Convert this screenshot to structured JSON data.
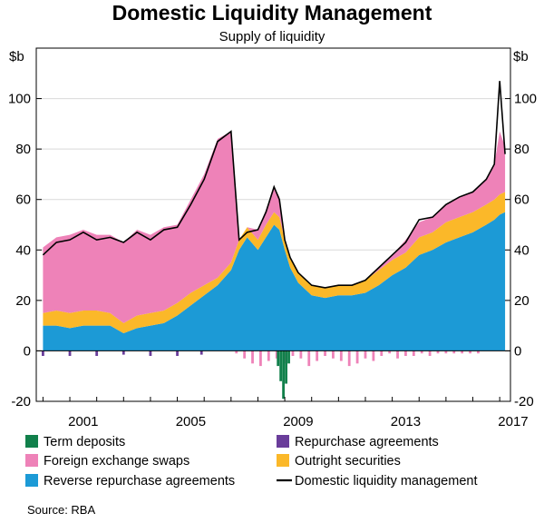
{
  "chart_data": {
    "type": "area",
    "title": "Domestic Liquidity Management",
    "subtitle": "Supply of liquidity",
    "ylabel_left": "$b",
    "ylabel_right": "$b",
    "ylim": [
      -20,
      120
    ],
    "yticks": [
      -20,
      0,
      20,
      40,
      60,
      80,
      100
    ],
    "xlim": [
      1999.75,
      2017.4
    ],
    "xticks": [
      2001,
      2005,
      2009,
      2013,
      2017
    ],
    "source": "Source:   RBA",
    "stack_order": [
      "Reverse repurchase agreements",
      "Outright securities",
      "Foreign exchange swaps"
    ],
    "negative_order": [
      "Repurchase agreements",
      "Foreign exchange swaps",
      "Term deposits"
    ],
    "legend": [
      {
        "name": "Term deposits",
        "color": "#11804b",
        "kind": "box"
      },
      {
        "name": "Repurchase agreements",
        "color": "#6a3d9a",
        "kind": "box"
      },
      {
        "name": "Foreign exchange swaps",
        "color": "#ee82b8",
        "kind": "box"
      },
      {
        "name": "Outright securities",
        "color": "#fbb829",
        "kind": "box"
      },
      {
        "name": "Reverse repurchase agreements",
        "color": "#1c9ad6",
        "kind": "box"
      },
      {
        "name": "Domestic liquidity management",
        "color": "#000000",
        "kind": "line"
      }
    ],
    "series": [
      {
        "name": "Reverse repurchase agreements",
        "color": "#1c9ad6",
        "x": [
          2000.0,
          2000.5,
          2001.0,
          2001.5,
          2002.0,
          2002.5,
          2003.0,
          2003.5,
          2004.0,
          2004.5,
          2005.0,
          2005.5,
          2006.0,
          2006.5,
          2007.0,
          2007.3,
          2007.6,
          2008.0,
          2008.3,
          2008.6,
          2008.8,
          2009.0,
          2009.2,
          2009.5,
          2010.0,
          2010.5,
          2011.0,
          2011.5,
          2012.0,
          2012.5,
          2013.0,
          2013.5,
          2014.0,
          2014.5,
          2015.0,
          2015.5,
          2016.0,
          2016.5,
          2016.8,
          2017.0,
          2017.2
        ],
        "values": [
          10,
          10,
          9,
          10,
          10,
          10,
          7,
          9,
          10,
          11,
          14,
          18,
          22,
          26,
          32,
          40,
          45,
          40,
          45,
          50,
          48,
          40,
          33,
          27,
          22,
          21,
          22,
          22,
          23,
          26,
          30,
          33,
          38,
          40,
          43,
          45,
          47,
          50,
          52,
          54,
          55
        ]
      },
      {
        "name": "Outright securities",
        "color": "#fbb829",
        "x": [
          2000.0,
          2000.5,
          2001.0,
          2001.5,
          2002.0,
          2002.5,
          2003.0,
          2003.5,
          2004.0,
          2004.5,
          2005.0,
          2005.5,
          2006.0,
          2006.5,
          2007.0,
          2007.3,
          2007.6,
          2008.0,
          2008.3,
          2008.6,
          2008.8,
          2009.0,
          2009.2,
          2009.5,
          2010.0,
          2010.5,
          2011.0,
          2011.5,
          2012.0,
          2012.5,
          2013.0,
          2013.5,
          2014.0,
          2014.5,
          2015.0,
          2015.5,
          2016.0,
          2016.5,
          2016.8,
          2017.0,
          2017.2
        ],
        "values": [
          5,
          6,
          6,
          6,
          6,
          5,
          4,
          5,
          5,
          5,
          5,
          5,
          4,
          3,
          3,
          4,
          4,
          4,
          5,
          5,
          5,
          4,
          4,
          4,
          4,
          4,
          4,
          4,
          5,
          6,
          6,
          6,
          7,
          7,
          8,
          8,
          8,
          8,
          8,
          8,
          8
        ]
      },
      {
        "name": "Foreign exchange swaps",
        "color": "#ee82b8",
        "x": [
          2000.0,
          2000.5,
          2001.0,
          2001.5,
          2002.0,
          2002.5,
          2003.0,
          2003.5,
          2004.0,
          2004.5,
          2005.0,
          2005.5,
          2006.0,
          2006.5,
          2007.0,
          2007.3,
          2007.6,
          2008.0,
          2008.3,
          2008.6,
          2008.8,
          2009.0,
          2009.2,
          2009.5,
          2010.0,
          2010.5,
          2011.0,
          2011.5,
          2012.0,
          2012.5,
          2013.0,
          2013.5,
          2014.0,
          2014.5,
          2015.0,
          2015.5,
          2016.0,
          2016.5,
          2016.8,
          2017.0,
          2017.2
        ],
        "values": [
          26,
          29,
          31,
          32,
          30,
          31,
          32,
          34,
          31,
          33,
          31,
          37,
          44,
          55,
          52,
          0,
          0,
          4,
          6,
          10,
          8,
          0,
          0,
          0,
          0,
          0,
          0,
          0,
          0,
          1,
          2,
          5,
          6,
          6,
          7,
          8,
          8,
          10,
          14,
          25,
          18
        ]
      },
      {
        "name": "Domestic liquidity management",
        "color": "#000000",
        "x": [
          2000.0,
          2000.5,
          2001.0,
          2001.5,
          2002.0,
          2002.5,
          2003.0,
          2003.5,
          2004.0,
          2004.5,
          2005.0,
          2005.5,
          2006.0,
          2006.5,
          2007.0,
          2007.3,
          2007.6,
          2008.0,
          2008.3,
          2008.6,
          2008.8,
          2009.0,
          2009.2,
          2009.5,
          2010.0,
          2010.5,
          2011.0,
          2011.5,
          2012.0,
          2012.5,
          2013.0,
          2013.5,
          2014.0,
          2014.5,
          2015.0,
          2015.5,
          2016.0,
          2016.5,
          2016.8,
          2017.0,
          2017.2
        ],
        "values": [
          38,
          43,
          44,
          47,
          44,
          45,
          43,
          47,
          44,
          48,
          49,
          58,
          68,
          83,
          87,
          44,
          47,
          48,
          55,
          65,
          60,
          44,
          37,
          31,
          26,
          25,
          26,
          26,
          28,
          33,
          38,
          43,
          52,
          53,
          58,
          61,
          63,
          68,
          74,
          107,
          78
        ]
      },
      {
        "name": "Repurchase agreements",
        "color": "#6a3d9a",
        "x": [
          2000.0,
          2001.0,
          2002.0,
          2003.0,
          2004.0,
          2005.0,
          2005.9
        ],
        "values": [
          -2,
          -2,
          -2,
          -1.5,
          -2,
          -2,
          -1.5
        ]
      },
      {
        "name": "Foreign exchange swaps (negative)",
        "color": "#ee82b8",
        "x": [
          2007.2,
          2007.5,
          2007.8,
          2008.1,
          2008.4,
          2008.7,
          2009.0,
          2009.3,
          2009.6,
          2009.9,
          2010.2,
          2010.5,
          2010.8,
          2011.1,
          2011.4,
          2011.7,
          2012.0,
          2012.3,
          2012.6,
          2012.9,
          2013.2,
          2013.5,
          2013.8,
          2014.1,
          2014.4,
          2014.7,
          2015.0,
          2015.3,
          2015.6,
          2015.9,
          2016.2
        ],
        "values": [
          -1,
          -3,
          -5,
          -6,
          -4,
          -3,
          -5,
          -2,
          -3,
          -6,
          -4,
          -2,
          -3,
          -4,
          -6,
          -5,
          -3,
          -4,
          -2,
          -1,
          -3,
          -2,
          -2,
          -1,
          -2,
          -1,
          -1,
          -1,
          -1,
          -1,
          -1
        ]
      },
      {
        "name": "Term deposits",
        "color": "#11804b",
        "x": [
          2008.75,
          2008.85,
          2008.95,
          2009.05,
          2009.15
        ],
        "values": [
          -6,
          -12,
          -19,
          -13,
          -5
        ]
      }
    ]
  }
}
